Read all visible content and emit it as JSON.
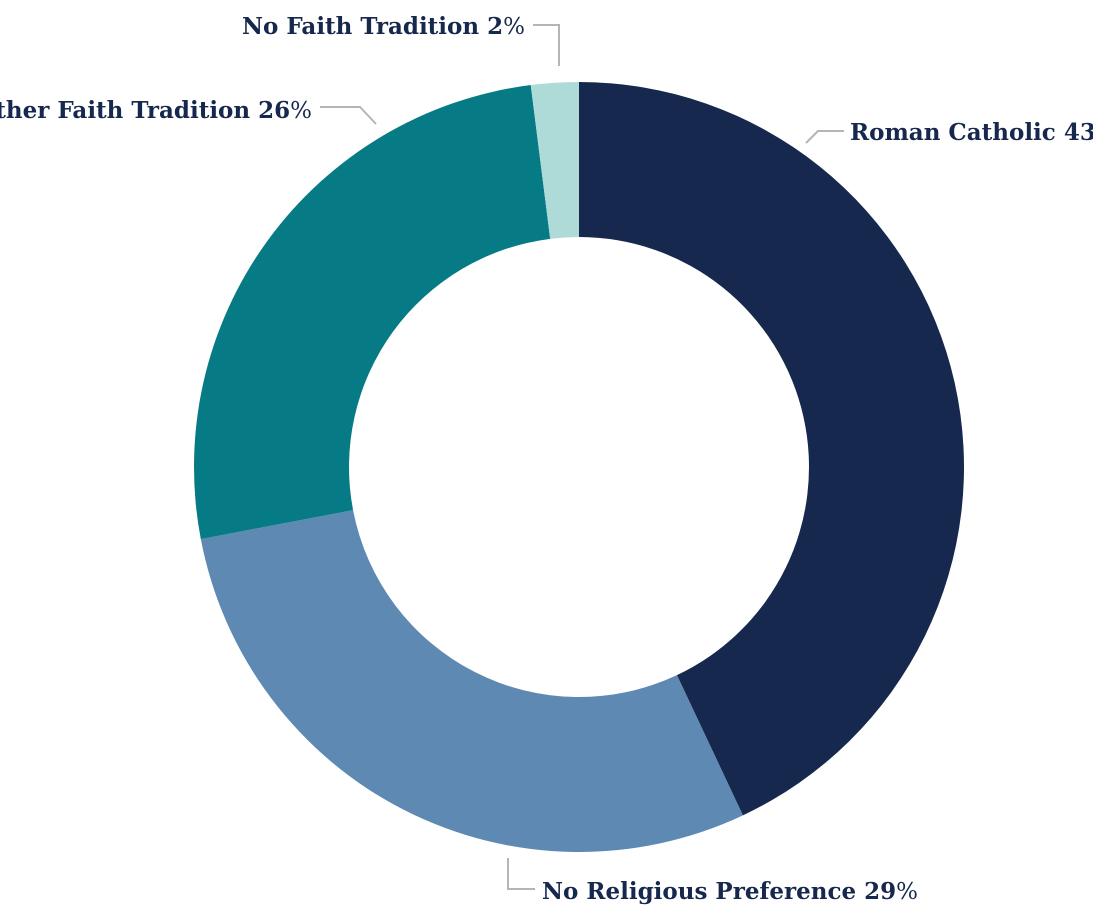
{
  "chart_data": {
    "type": "pie",
    "variant": "donut",
    "percent_symbol": "%",
    "slices": [
      {
        "label": "Roman Catholic",
        "value": 43,
        "color": "#16284d"
      },
      {
        "label": "No Religious Preference",
        "value": 29,
        "color": "#5d89b3"
      },
      {
        "label": "Other Faith Tradition",
        "value": 26,
        "color": "#067a85"
      },
      {
        "label": "No Faith Tradition",
        "value": 2,
        "color": "#aedbd7"
      }
    ],
    "legend": "none",
    "labels": "outside"
  },
  "colors": {
    "text": "#16284d",
    "leader_line": "#b5b5b5",
    "background": "#ffffff"
  }
}
